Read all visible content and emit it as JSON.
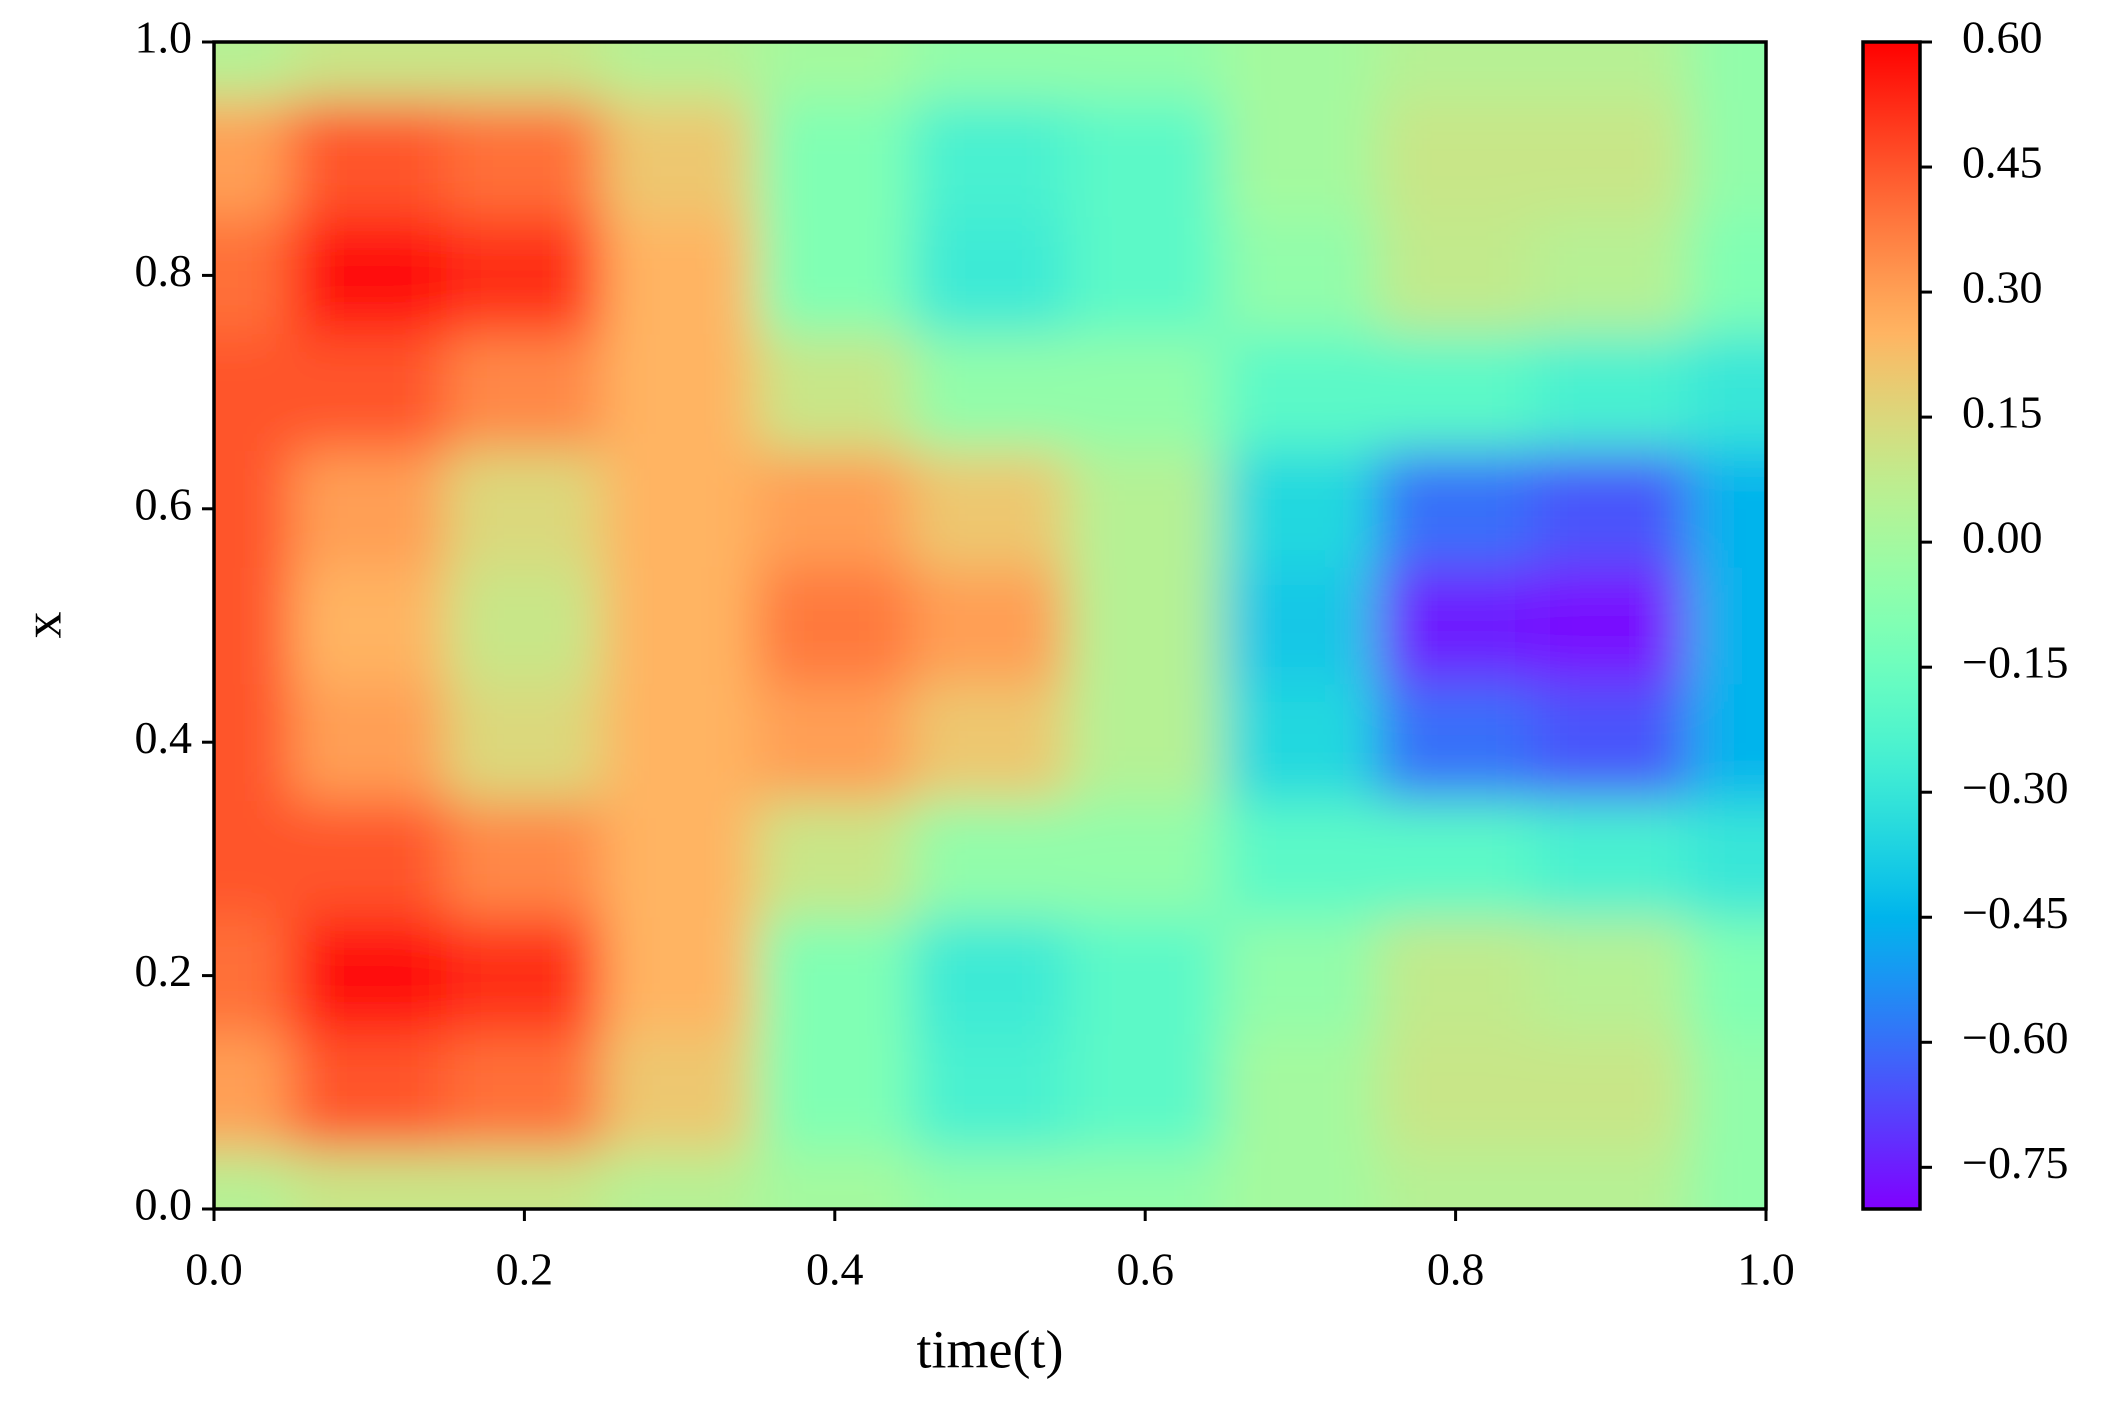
{
  "chart_data": {
    "type": "heatmap",
    "xlabel": "time(t)",
    "ylabel": "x",
    "x": [
      0,
      0.1,
      0.2,
      0.3,
      0.4,
      0.5,
      0.6,
      0.7,
      0.8,
      0.9,
      1
    ],
    "y": [
      0,
      0.1,
      0.2,
      0.3,
      0.4,
      0.5,
      0.6,
      0.7,
      0.8,
      0.9,
      1
    ],
    "z": [
      [
        0.05,
        0.3,
        0.4,
        0.45,
        0.45,
        0.45,
        0.45,
        0.45,
        0.4,
        0.3,
        0.05
      ],
      [
        0.1,
        0.45,
        0.57,
        0.45,
        0.3,
        0.25,
        0.3,
        0.45,
        0.57,
        0.45,
        0.1
      ],
      [
        0.1,
        0.4,
        0.52,
        0.35,
        0.15,
        0.1,
        0.15,
        0.35,
        0.52,
        0.4,
        0.1
      ],
      [
        0.05,
        0.2,
        0.25,
        0.25,
        0.25,
        0.25,
        0.25,
        0.25,
        0.25,
        0.2,
        0.05
      ],
      [
        0,
        -0.1,
        -0.1,
        0.1,
        0.3,
        0.38,
        0.3,
        0.1,
        -0.1,
        -0.1,
        0
      ],
      [
        -0.05,
        -0.25,
        -0.28,
        -0.05,
        0.2,
        0.3,
        0.2,
        -0.05,
        -0.28,
        -0.25,
        -0.05
      ],
      [
        -0.05,
        -0.2,
        -0.2,
        -0.05,
        0.05,
        0.05,
        0.05,
        -0.05,
        -0.2,
        -0.2,
        -0.05
      ],
      [
        0,
        0,
        -0.05,
        -0.2,
        -0.35,
        -0.4,
        -0.35,
        -0.2,
        -0.05,
        0,
        0
      ],
      [
        0.05,
        0.1,
        0.08,
        -0.2,
        -0.6,
        -0.75,
        -0.6,
        -0.2,
        0.08,
        0.1,
        0.05
      ],
      [
        0.05,
        0.1,
        0.05,
        -0.25,
        -0.65,
        -0.78,
        -0.65,
        -0.25,
        0.05,
        0.1,
        0.05
      ],
      [
        -0.05,
        -0.05,
        -0.1,
        -0.3,
        -0.45,
        -0.45,
        -0.45,
        -0.3,
        -0.1,
        -0.05,
        -0.05
      ]
    ],
    "colormap": "rainbow",
    "xlim": [
      0,
      1
    ],
    "ylim": [
      0,
      1
    ],
    "xticks": [
      {
        "value": 0,
        "label": "0.0"
      },
      0.2,
      0.4,
      0.6,
      0.8,
      {
        "value": 1,
        "label": "1.0"
      }
    ],
    "yticks": [
      {
        "value": 0,
        "label": "0.0"
      },
      0.2,
      0.4,
      0.6,
      0.8,
      {
        "value": 1,
        "label": "1.0"
      }
    ],
    "clim": [
      -0.8,
      0.6
    ],
    "cticks": [
      {
        "value": 0.6,
        "label": "0.60"
      },
      0.45,
      {
        "value": 0.3,
        "label": "0.30"
      },
      0.15,
      {
        "value": 0,
        "label": "0.00"
      },
      {
        "value": -0.15,
        "label": "−0.15"
      },
      {
        "value": -0.3,
        "label": "−0.30"
      },
      {
        "value": -0.45,
        "label": "−0.45"
      },
      {
        "value": -0.6,
        "label": "−0.60"
      },
      {
        "value": -0.75,
        "label": "−0.75"
      }
    ]
  }
}
